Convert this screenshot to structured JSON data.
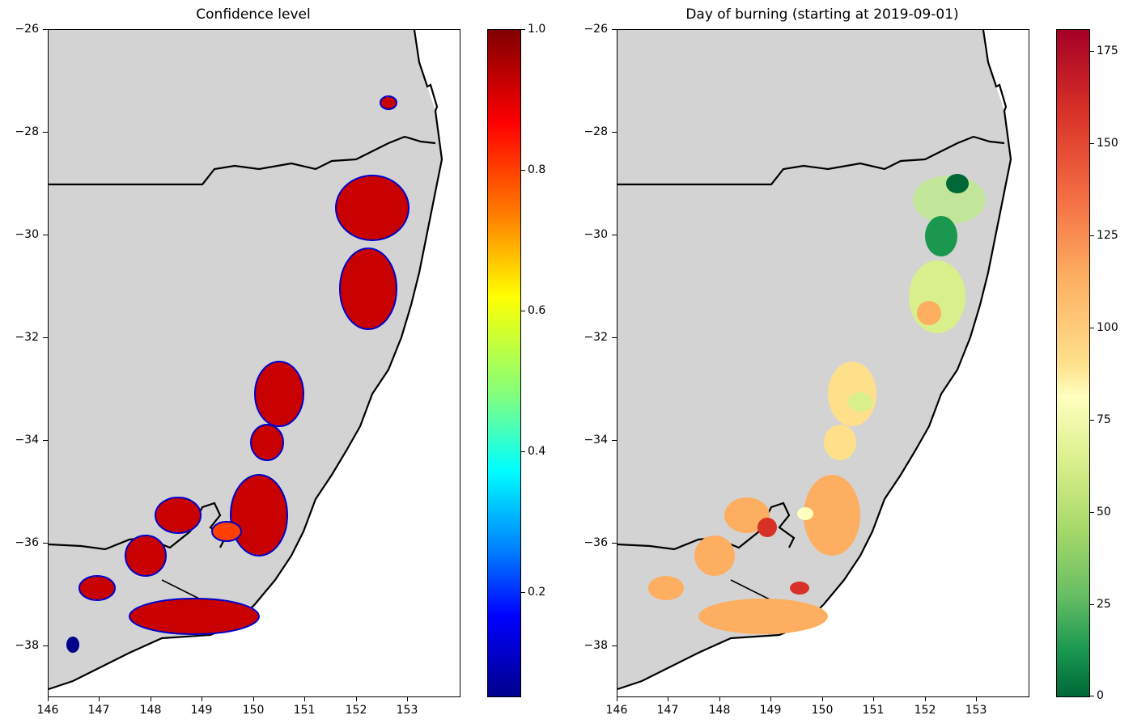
{
  "colors": {
    "land": "#d3d3d3",
    "sea": "#ffffff",
    "coast": "#000000"
  },
  "panels": [
    {
      "title": "Confidence level",
      "x_ticks": [
        "146",
        "147",
        "148",
        "149",
        "150",
        "151",
        "152",
        "153"
      ],
      "y_ticks": [
        "−26",
        "−28",
        "−30",
        "−32",
        "−34",
        "−36",
        "−38"
      ],
      "colorbar_ticks": [
        "1.0",
        "0.8",
        "0.6",
        "0.4",
        "0.2"
      ],
      "colormap": "jet",
      "colorbar_range": [
        0.05,
        1.0
      ]
    },
    {
      "title": "Day of burning (starting at 2019-09-01)",
      "x_ticks": [
        "146",
        "147",
        "148",
        "149",
        "150",
        "151",
        "152",
        "153"
      ],
      "y_ticks": [
        "−26",
        "−28",
        "−30",
        "−32",
        "−34",
        "−36",
        "−38"
      ],
      "colorbar_ticks": [
        "175",
        "150",
        "125",
        "100",
        "75",
        "50",
        "25",
        "0"
      ],
      "colormap": "RdYlGn_r",
      "colorbar_range": [
        0,
        181
      ]
    }
  ],
  "map_extent": {
    "lon": [
      146,
      154
    ],
    "lat": [
      -39,
      -26
    ]
  }
}
